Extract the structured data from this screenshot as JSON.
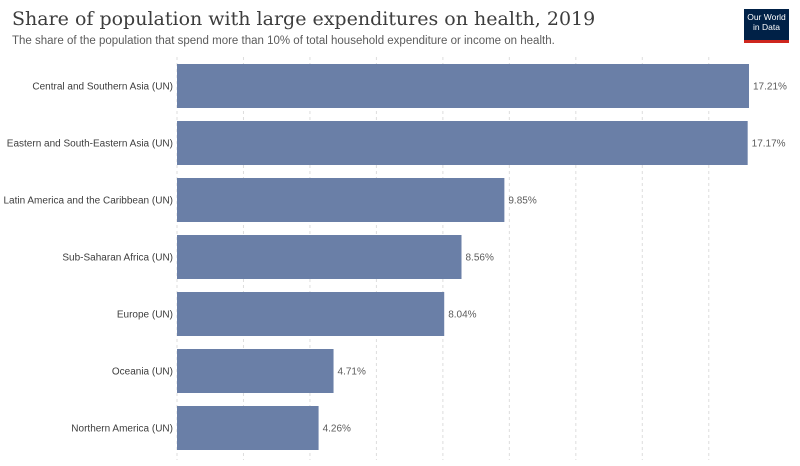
{
  "header": {
    "title": "Share of population with large expenditures on health, 2019",
    "subtitle": "The share of the population that spend more than 10% of total household expenditure or income on health."
  },
  "logo": {
    "line1": "Our World",
    "line2": "in Data",
    "background": "#002147",
    "accent": "#ce261e"
  },
  "chart_data": {
    "type": "bar",
    "orientation": "horizontal",
    "categories": [
      "Central and Southern Asia (UN)",
      "Eastern and South-Eastern Asia (UN)",
      "Latin America and the Caribbean (UN)",
      "Sub-Saharan Africa (UN)",
      "Europe (UN)",
      "Oceania (UN)",
      "Northern America (UN)"
    ],
    "values": [
      17.21,
      17.17,
      9.85,
      8.56,
      8.04,
      4.71,
      4.26
    ],
    "value_labels": [
      "17.21%",
      "17.17%",
      "9.85%",
      "8.56%",
      "8.04%",
      "4.71%",
      "4.26%"
    ],
    "unit": "%",
    "xlim": [
      0,
      17.21
    ],
    "grid": true,
    "grid_style": "dashed vertical",
    "bar_color": "#6a7fa7",
    "title": "Share of population with large expenditures on health, 2019"
  }
}
